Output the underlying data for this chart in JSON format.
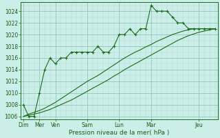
{
  "xlabel": "Pression niveau de la mer( hPa )",
  "background_color": "#cceee8",
  "grid_color_minor": "#aad8d0",
  "grid_color_major": "#88bbb5",
  "line_color": "#1a6b1a",
  "ylim": [
    1005.5,
    1025.5
  ],
  "yticks": [
    1006,
    1008,
    1010,
    1012,
    1014,
    1016,
    1018,
    1020,
    1022,
    1024
  ],
  "yticks_minor": [
    1006,
    1007,
    1008,
    1009,
    1010,
    1011,
    1012,
    1013,
    1014,
    1015,
    1016,
    1017,
    1018,
    1019,
    1020,
    1021,
    1022,
    1023,
    1024,
    1025
  ],
  "xlim": [
    -0.5,
    36.5
  ],
  "x_major_pos": [
    0,
    3,
    6,
    12,
    18,
    24,
    33
  ],
  "x_major_labels": [
    "Dim",
    "Mer",
    "Ven",
    "Sam",
    "Lun",
    "Mar",
    "Jeu"
  ],
  "series1_x": [
    0,
    1,
    2,
    3,
    4,
    5,
    6,
    7,
    8,
    9,
    10,
    11,
    12,
    13,
    14,
    15,
    16,
    17,
    18,
    19,
    20,
    21,
    22,
    23,
    24,
    25,
    26,
    27,
    28,
    29,
    30,
    31,
    32,
    33,
    34,
    35,
    36
  ],
  "series1_y": [
    1008,
    1006,
    1006,
    1010,
    1014,
    1016,
    1015,
    1016,
    1016,
    1017,
    1017,
    1017,
    1017,
    1017,
    1018,
    1017,
    1017,
    1018,
    1020,
    1020,
    1021,
    1020,
    1021,
    1021,
    1025,
    1024,
    1024,
    1024,
    1023,
    1022,
    1022,
    1021,
    1021,
    1021,
    1021,
    1021,
    1021
  ],
  "series2_x": [
    0,
    1,
    2,
    3,
    4,
    5,
    6,
    7,
    8,
    9,
    10,
    11,
    12,
    13,
    14,
    15,
    16,
    17,
    18,
    19,
    20,
    21,
    22,
    23,
    24,
    25,
    26,
    27,
    28,
    29,
    30,
    31,
    32,
    33,
    34,
    35,
    36
  ],
  "series2_y": [
    1006,
    1006.4,
    1006.7,
    1007,
    1007.4,
    1007.9,
    1008.4,
    1009,
    1009.6,
    1010.2,
    1010.8,
    1011.4,
    1012,
    1012.5,
    1013,
    1013.6,
    1014.2,
    1014.8,
    1015.4,
    1016,
    1016.5,
    1017,
    1017.4,
    1017.9,
    1018.3,
    1018.8,
    1019.2,
    1019.6,
    1020,
    1020.3,
    1020.6,
    1020.8,
    1021,
    1021,
    1021,
    1021,
    1021
  ],
  "series3_x": [
    0,
    1,
    2,
    3,
    4,
    5,
    6,
    7,
    8,
    9,
    10,
    11,
    12,
    13,
    14,
    15,
    16,
    17,
    18,
    19,
    20,
    21,
    22,
    23,
    24,
    25,
    26,
    27,
    28,
    29,
    30,
    31,
    32,
    33,
    34,
    35,
    36
  ],
  "series3_y": [
    1006,
    1006.2,
    1006.4,
    1006.6,
    1006.9,
    1007.2,
    1007.6,
    1008,
    1008.4,
    1008.8,
    1009.3,
    1009.8,
    1010.3,
    1010.8,
    1011.3,
    1011.8,
    1012.3,
    1012.9,
    1013.4,
    1014,
    1014.5,
    1015,
    1015.5,
    1016,
    1016.5,
    1017,
    1017.5,
    1018,
    1018.5,
    1019,
    1019.4,
    1019.8,
    1020.1,
    1020.4,
    1020.6,
    1020.8,
    1021
  ]
}
